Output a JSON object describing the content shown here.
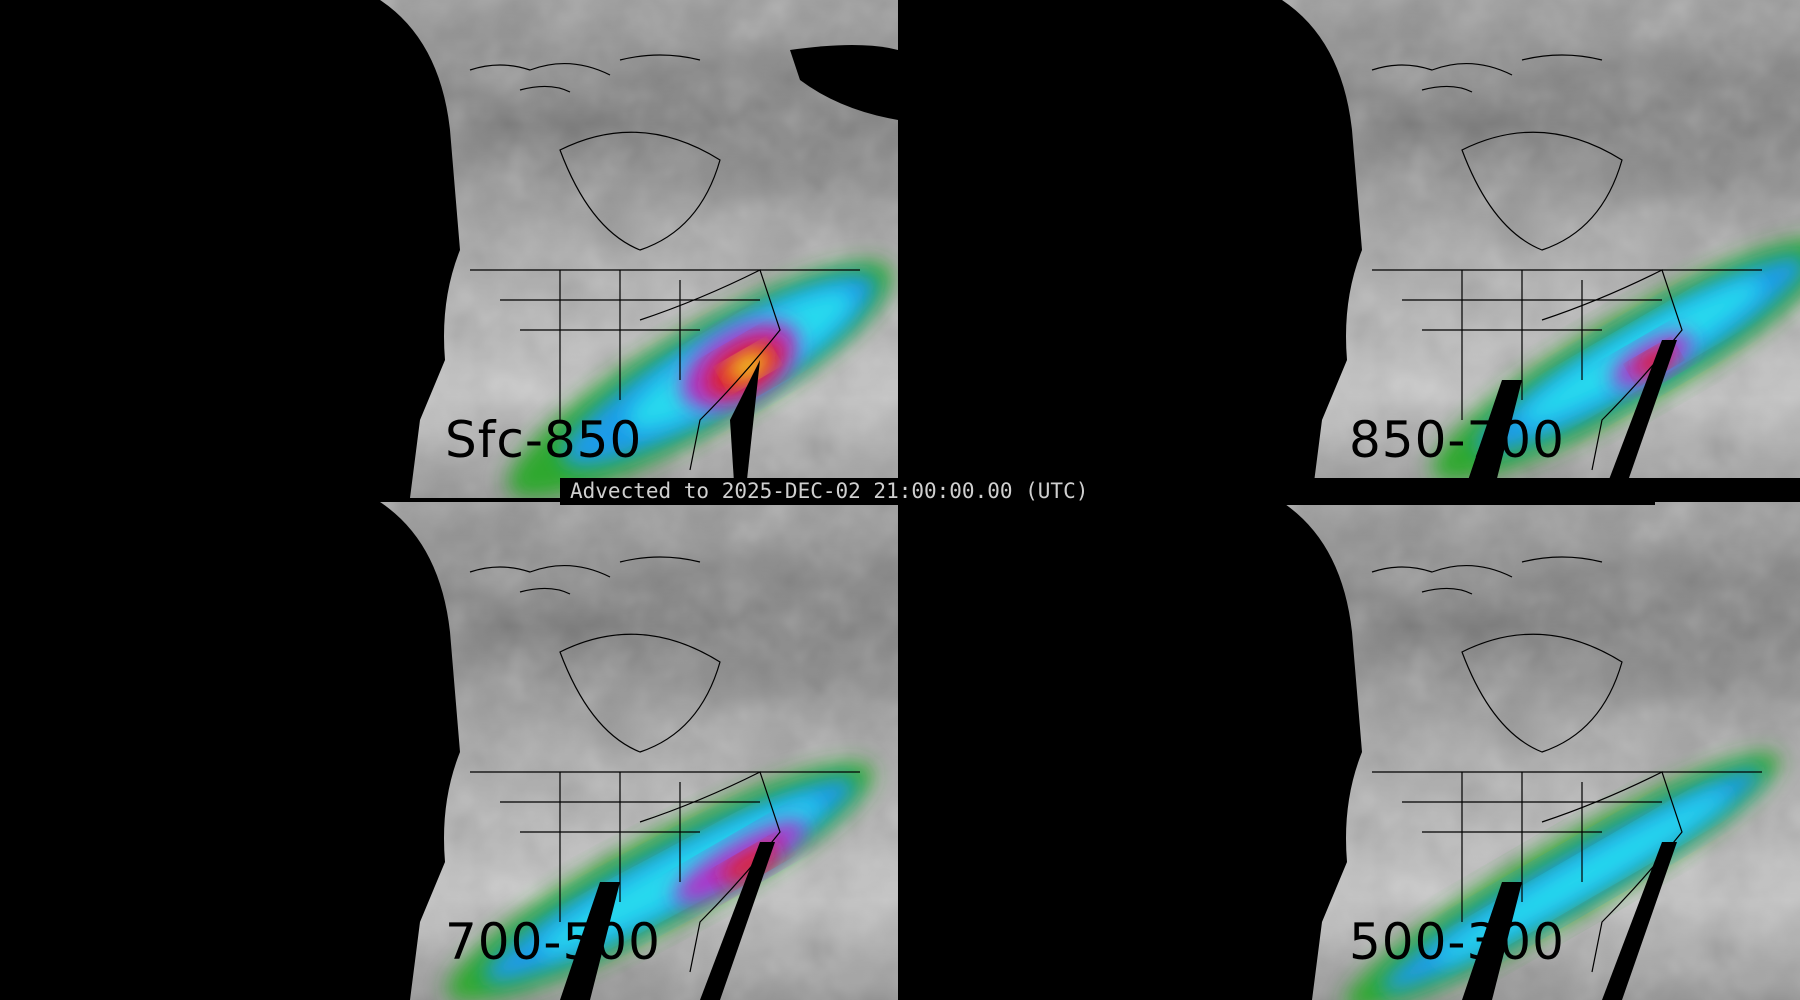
{
  "caption": "Advected to 2025-DEC-02 21:00:00.00 (UTC)",
  "panels": [
    {
      "label": "Sfc-850",
      "intensity": "high"
    },
    {
      "label": "850-700",
      "intensity": "medium"
    },
    {
      "label": "700-500",
      "intensity": "high"
    },
    {
      "label": "500-300",
      "intensity": "low"
    }
  ],
  "colors": {
    "background": "#000000",
    "low": "#2fa82f",
    "mid": "#1e9be8",
    "upper": "#27d9ee",
    "high_purple": "#b030c8",
    "high_red": "#e02020",
    "peak_yellow": "#f0d020",
    "caption_text": "#cfcfcf"
  }
}
